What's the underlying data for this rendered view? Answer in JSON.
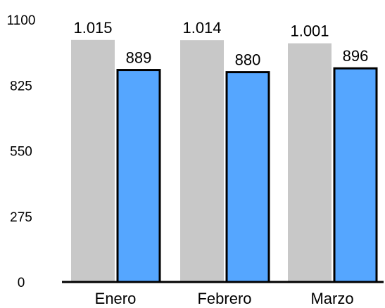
{
  "chart_data": {
    "type": "bar",
    "categories": [
      "Enero",
      "Febrero",
      "Marzo"
    ],
    "series": [
      {
        "values": [
          1015,
          1014,
          1001
        ],
        "labels": [
          "1.015",
          "1.014",
          "1.001"
        ],
        "color": "#c8c8c8"
      },
      {
        "values": [
          889,
          880,
          896
        ],
        "labels": [
          "889",
          "880",
          "896"
        ],
        "color": "#55a6ff"
      }
    ],
    "yticks": [
      "0",
      "275",
      "550",
      "825",
      "1100"
    ],
    "ylim": [
      0,
      1100
    ],
    "grid": false,
    "legend": "none"
  }
}
